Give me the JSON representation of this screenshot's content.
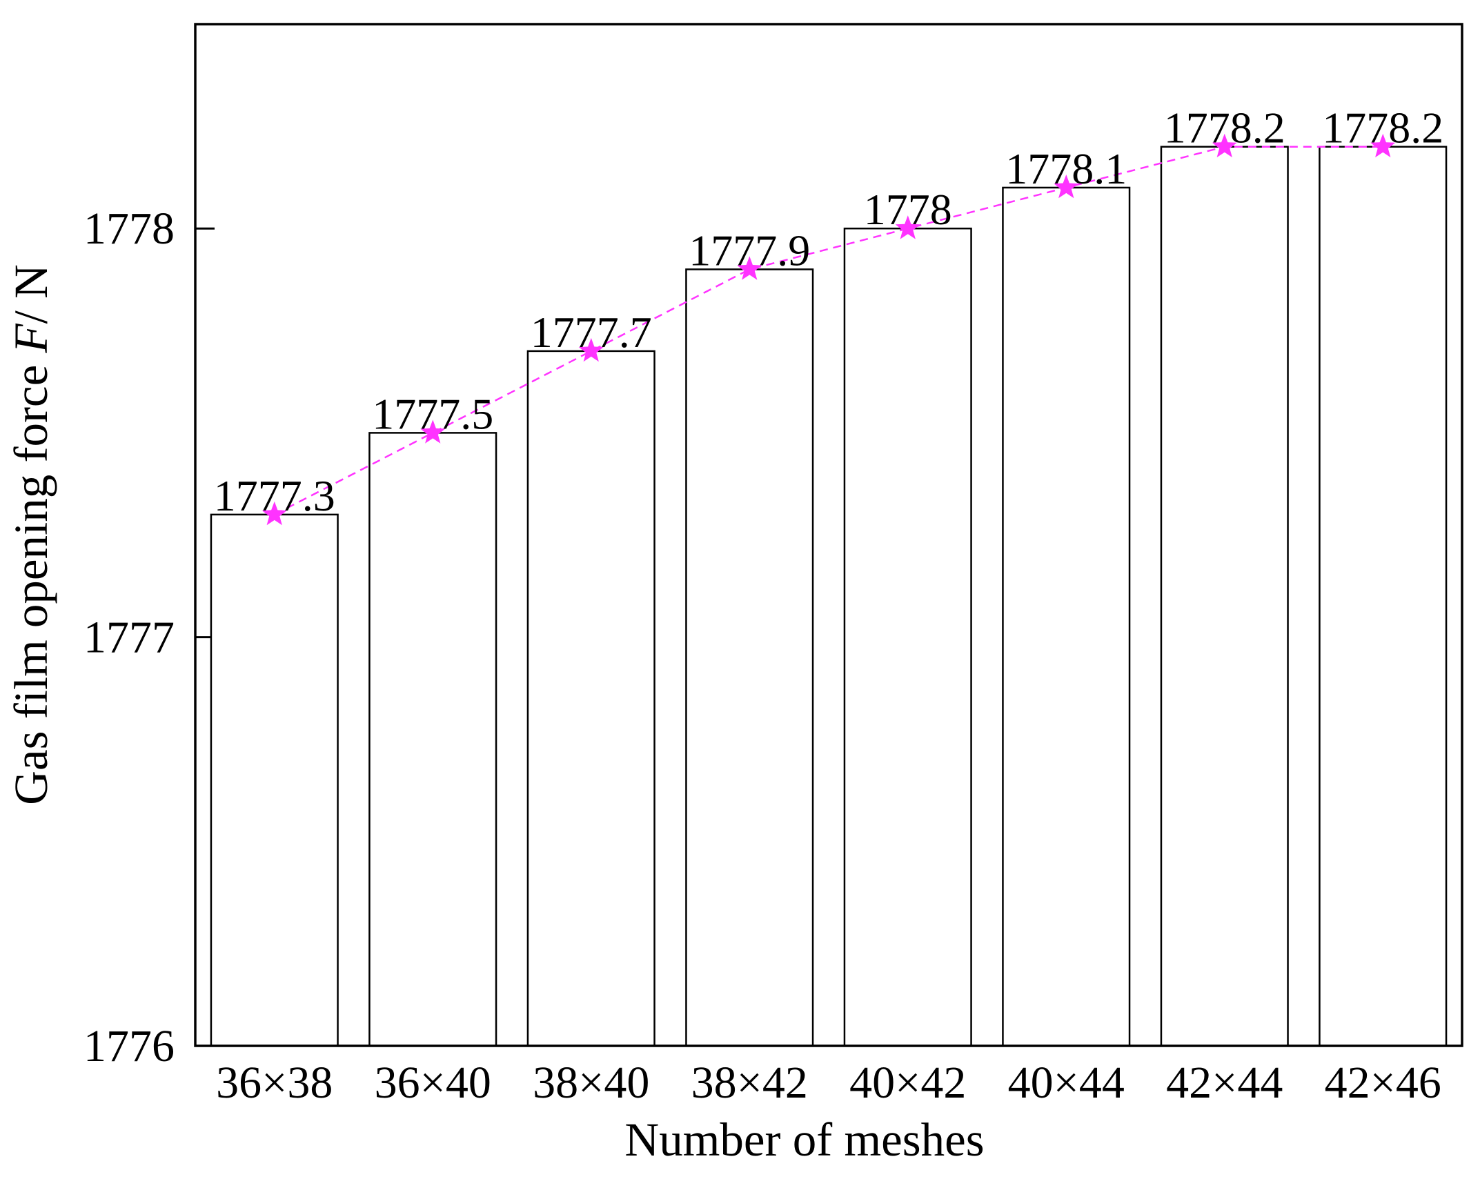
{
  "chart_data": {
    "type": "bar",
    "xlabel": "Number of meshes",
    "ylabel": [
      "Gas film opening force ",
      "F",
      "/ N"
    ],
    "categories": [
      "36×38",
      "36×40",
      "38×40",
      "38×42",
      "40×42",
      "40×44",
      "42×44",
      "42×46"
    ],
    "values": [
      1777.3,
      1777.5,
      1777.7,
      1777.9,
      1778,
      1778.1,
      1778.2,
      1778.2
    ],
    "color": "#ffffff",
    "line_color": "#ff33ff",
    "marker": "star",
    "ylim": [
      1776,
      1778.5
    ],
    "yticks": [
      1776,
      1777,
      1778
    ],
    "grid": false
  }
}
